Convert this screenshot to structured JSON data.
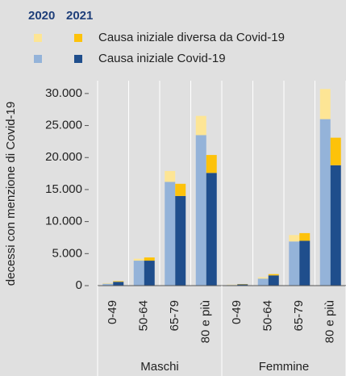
{
  "chart_data": {
    "type": "stacked-grouped-bar",
    "y_label": "decessi con menzione di  Covid-19",
    "years": [
      "2020",
      "2021"
    ],
    "groups": [
      "Maschi",
      "Femmine"
    ],
    "categories": [
      "0-49",
      "50-64",
      "65-79",
      "80 e più",
      "0-49",
      "50-64",
      "65-79",
      "80 e più"
    ],
    "series": [
      {
        "name": "Causa iniziale Covid-19",
        "colors": [
          "#94b3d9",
          "#1f4e8c"
        ],
        "values": [
          [
            300,
            3900,
            16200,
            23500,
            100,
            1100,
            6900,
            26000
          ],
          [
            600,
            3900,
            14000,
            17600,
            200,
            1600,
            7000,
            18800
          ]
        ]
      },
      {
        "name": "Causa iniziale diversa da Covid-19",
        "colors": [
          "#fde595",
          "#fdc20a"
        ],
        "values": [
          [
            100,
            300,
            1700,
            3000,
            50,
            200,
            1000,
            4700
          ],
          [
            100,
            500,
            1900,
            2800,
            50,
            200,
            1200,
            4300
          ]
        ]
      }
    ],
    "ylim": [
      0,
      32000
    ],
    "yticks": [
      0,
      {
        "value": 5000,
        "label": "5.000"
      },
      {
        "value": 10000,
        "label": "10.000"
      },
      {
        "value": 15000,
        "label": "15.000"
      },
      {
        "value": 20000,
        "label": "20.000"
      },
      {
        "value": 25000,
        "label": "25.000"
      },
      {
        "value": 30000,
        "label": "30.000"
      }
    ]
  }
}
